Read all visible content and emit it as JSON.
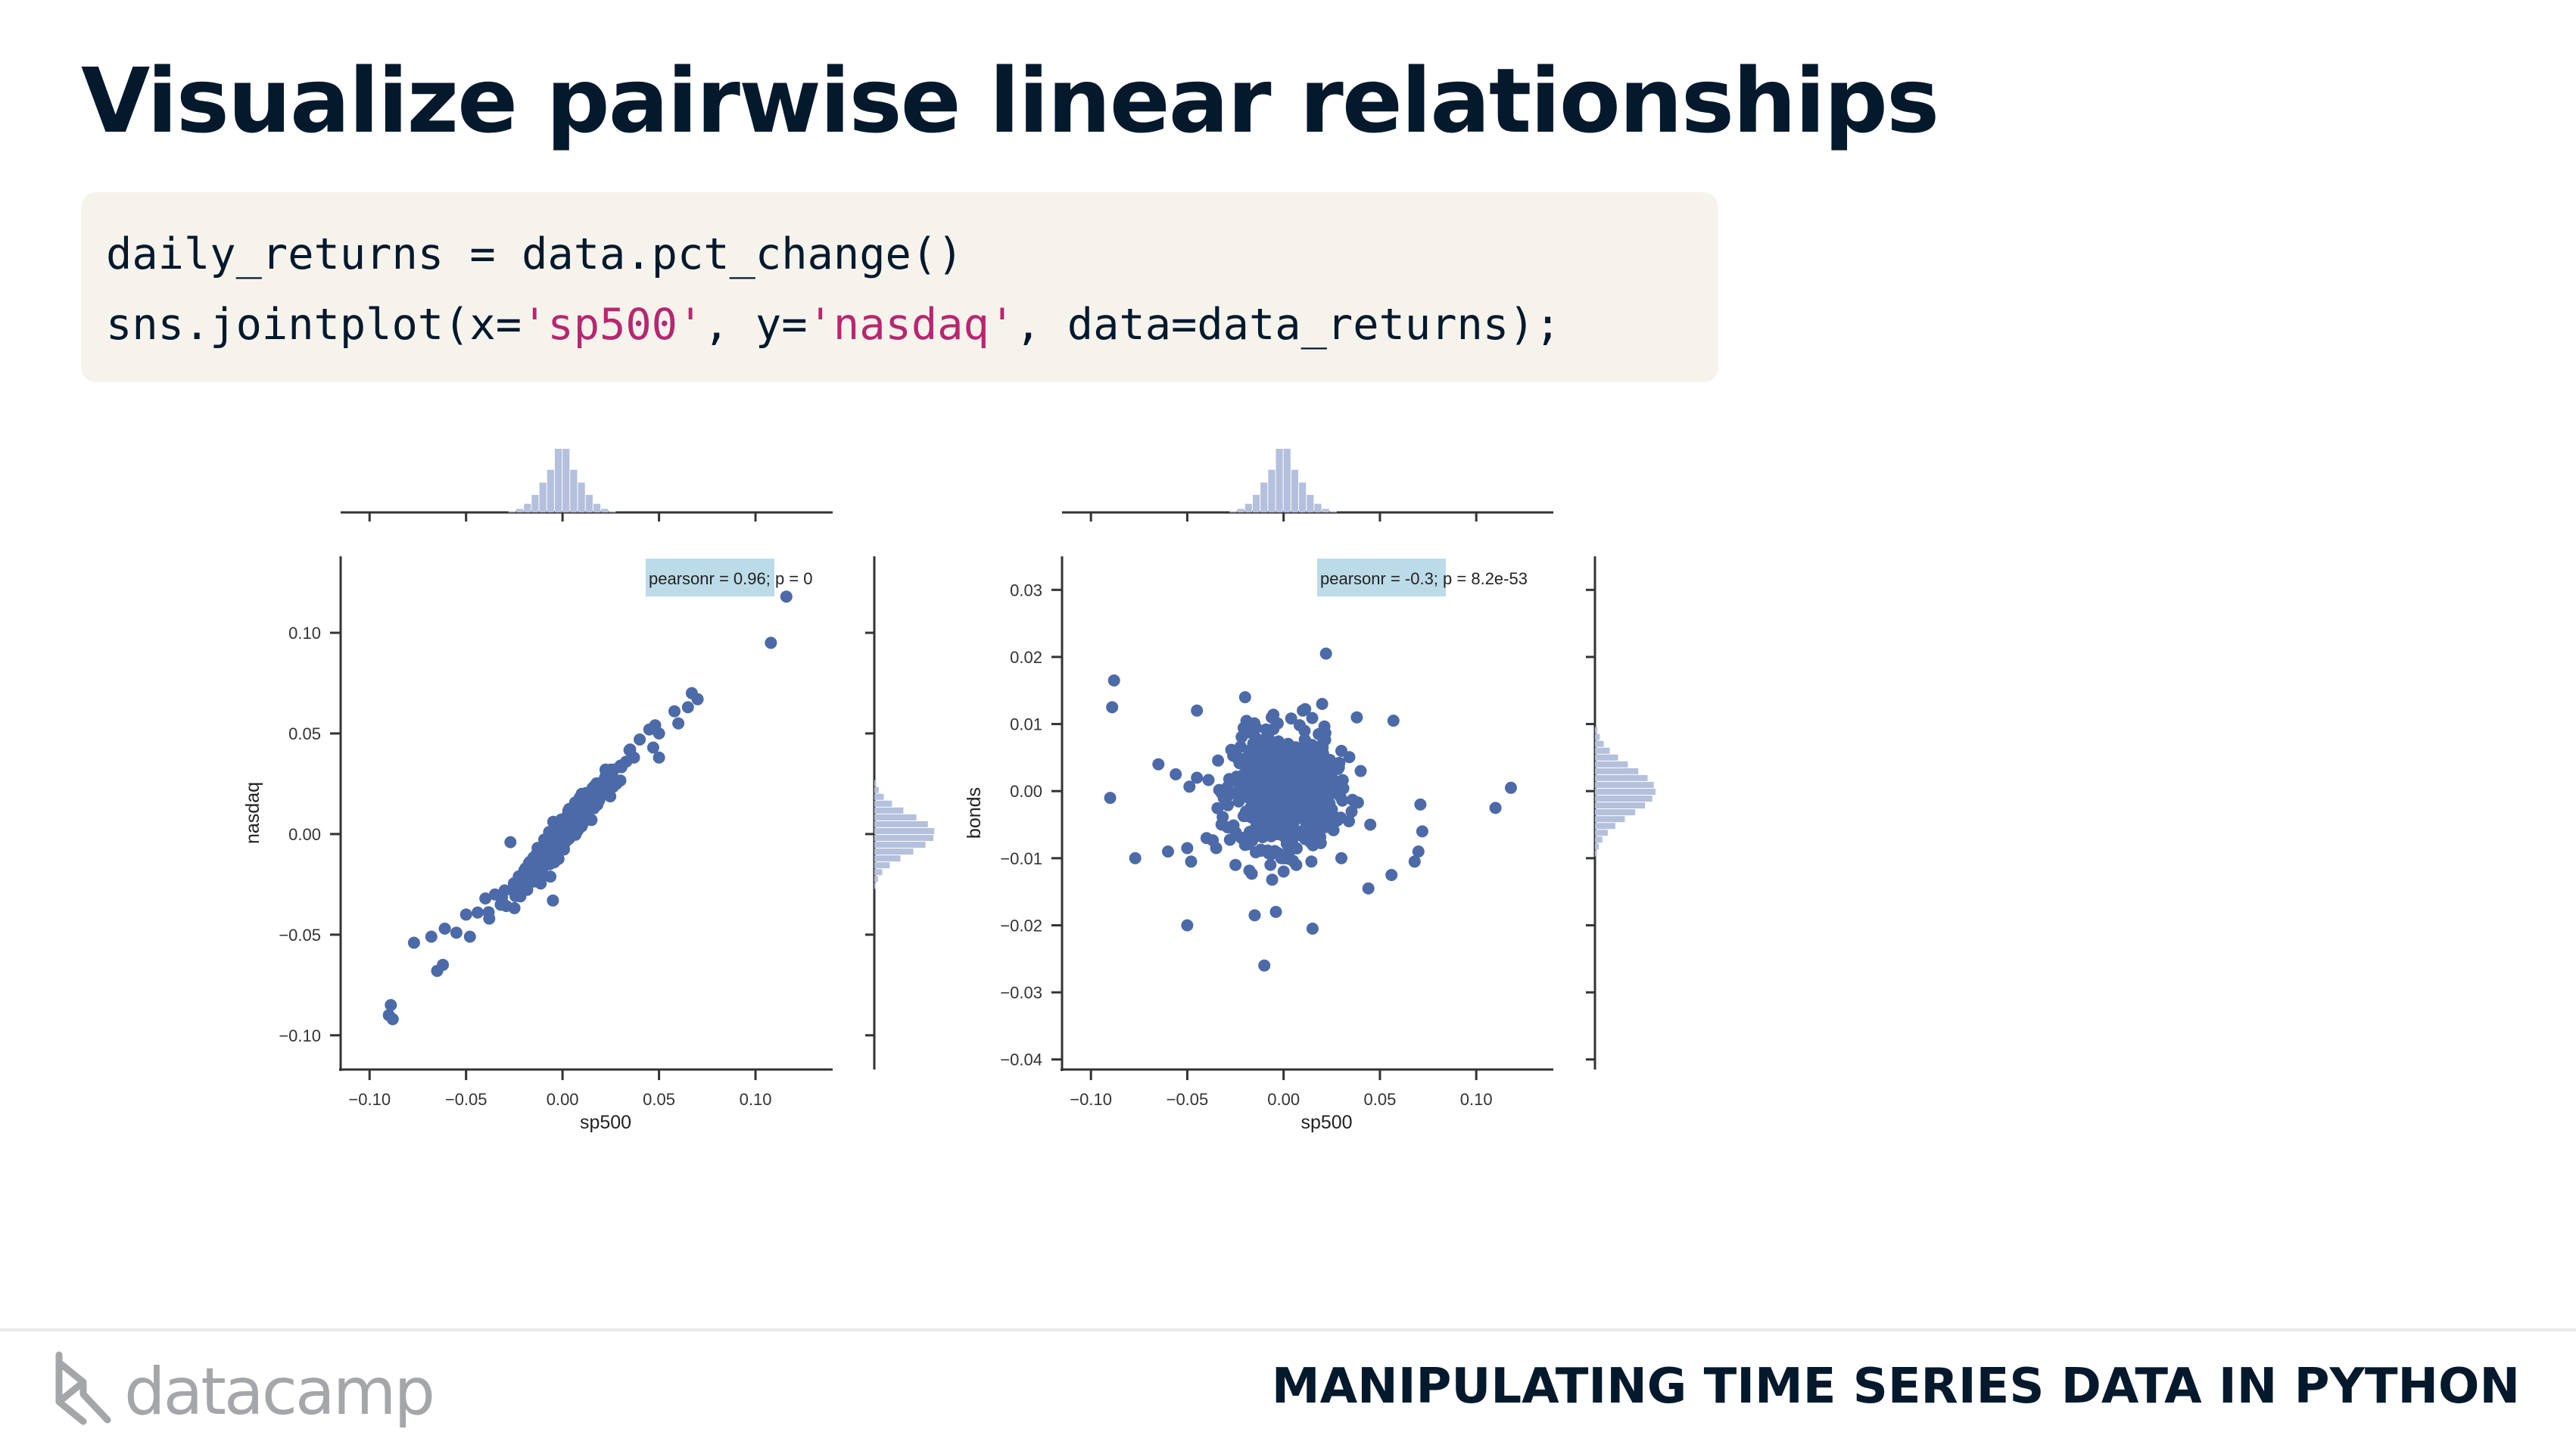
{
  "slide": {
    "title": "Visualize pairwise linear relationships",
    "footer_course": "MANIPULATING TIME SERIES DATA IN PYTHON",
    "logo_text": "datacamp"
  },
  "code": {
    "line1": "daily_returns = data.pct_change()",
    "line2_pre": "sns.jointplot(x=",
    "line2_x": "'sp500'",
    "line2_mid": ", y=",
    "line2_y": "'nasdaq'",
    "line2_post": ", data=data_returns);"
  },
  "colors": {
    "point": "#4c6aa8",
    "hist": "#b4c0dc",
    "annot_box": "#bcdbe8",
    "text": "#05192d",
    "string": "#b8266f"
  },
  "chart_data": [
    {
      "type": "scatter",
      "title": "",
      "xlabel": "sp500",
      "ylabel": "nasdaq",
      "xlim": [
        -0.115,
        0.14
      ],
      "ylim": [
        -0.117,
        0.138
      ],
      "xticks": [
        -0.1,
        -0.05,
        0.0,
        0.05,
        0.1
      ],
      "xtick_labels": [
        "−0.10",
        "−0.05",
        "0.00",
        "0.05",
        "0.10"
      ],
      "yticks": [
        -0.1,
        -0.05,
        0.0,
        0.05,
        0.1
      ],
      "ytick_labels": [
        "−0.10",
        "−0.05",
        "0.00",
        "0.05",
        "0.10"
      ],
      "annotation_highlight": "pearsonr = 0.96",
      "annotation_rest": "; p = 0",
      "marginal_histograms": true,
      "points": [
        [
          0.116,
          0.118
        ],
        [
          0.108,
          0.095
        ],
        [
          0.07,
          0.067
        ],
        [
          0.065,
          0.063
        ],
        [
          0.06,
          0.055
        ],
        [
          0.067,
          0.07
        ],
        [
          0.058,
          0.061
        ],
        [
          0.05,
          0.05
        ],
        [
          0.045,
          0.052
        ],
        [
          0.04,
          0.047
        ],
        [
          0.03,
          0.034
        ],
        [
          0.048,
          0.054
        ],
        [
          0.035,
          0.042
        ],
        [
          0.025,
          0.032
        ],
        [
          0.033,
          0.036
        ],
        [
          0.022,
          0.028
        ],
        [
          0.05,
          0.038
        ],
        [
          0.047,
          0.043
        ],
        [
          -0.09,
          -0.09
        ],
        [
          -0.089,
          -0.085
        ],
        [
          -0.088,
          -0.092
        ],
        [
          -0.077,
          -0.054
        ],
        [
          -0.068,
          -0.051
        ],
        [
          -0.065,
          -0.068
        ],
        [
          -0.062,
          -0.065
        ],
        [
          -0.061,
          -0.047
        ],
        [
          -0.055,
          -0.049
        ],
        [
          -0.05,
          -0.04
        ],
        [
          -0.048,
          -0.051
        ],
        [
          -0.044,
          -0.039
        ],
        [
          -0.04,
          -0.032
        ],
        [
          -0.035,
          -0.03
        ],
        [
          -0.03,
          -0.028
        ],
        [
          -0.027,
          -0.004
        ],
        [
          -0.015,
          -0.019
        ],
        [
          -0.005,
          -0.033
        ],
        [
          0.01,
          0.02
        ],
        [
          0.015,
          0.007
        ],
        [
          0.028,
          0.025
        ],
        [
          -0.02,
          -0.023
        ],
        [
          -0.012,
          -0.015
        ],
        [
          0.005,
          0.009
        ],
        [
          0.012,
          0.014
        ],
        [
          0.037,
          0.038
        ],
        [
          -0.038,
          -0.042
        ],
        [
          -0.022,
          -0.03
        ],
        [
          0.018,
          0.022
        ]
      ],
      "cluster_spread": 0.012
    },
    {
      "type": "scatter",
      "title": "",
      "xlabel": "sp500",
      "ylabel": "bonds",
      "xlim": [
        -0.115,
        0.14
      ],
      "ylim": [
        -0.0415,
        0.035
      ],
      "xticks": [
        -0.1,
        -0.05,
        0.0,
        0.05,
        0.1
      ],
      "xtick_labels": [
        "−0.10",
        "−0.05",
        "0.00",
        "0.05",
        "0.10"
      ],
      "yticks": [
        -0.04,
        -0.03,
        -0.02,
        -0.01,
        0.0,
        0.01,
        0.02,
        0.03
      ],
      "ytick_labels": [
        "−0.04",
        "−0.03",
        "−0.02",
        "−0.01",
        "0.00",
        "0.01",
        "0.02",
        "0.03"
      ],
      "annotation_highlight": "pearsonr = -0.3",
      "annotation_rest": "; p = 8.2e-53",
      "marginal_histograms": true,
      "points": [
        [
          -0.088,
          0.0165
        ],
        [
          -0.089,
          0.0125
        ],
        [
          -0.09,
          -0.001
        ],
        [
          -0.077,
          -0.01
        ],
        [
          -0.06,
          -0.009
        ],
        [
          -0.065,
          0.004
        ],
        [
          -0.05,
          -0.0085
        ],
        [
          -0.048,
          -0.0105
        ],
        [
          -0.035,
          -0.0085
        ],
        [
          -0.045,
          0.012
        ],
        [
          -0.05,
          -0.02
        ],
        [
          -0.015,
          -0.0185
        ],
        [
          -0.004,
          -0.018
        ],
        [
          -0.01,
          -0.026
        ],
        [
          0.015,
          -0.0205
        ],
        [
          0.022,
          0.0205
        ],
        [
          0.057,
          0.0105
        ],
        [
          0.038,
          0.011
        ],
        [
          0.068,
          -0.0105
        ],
        [
          0.072,
          -0.006
        ],
        [
          0.07,
          -0.009
        ],
        [
          0.056,
          -0.0125
        ],
        [
          0.044,
          -0.0145
        ],
        [
          0.11,
          -0.0025
        ],
        [
          0.118,
          0.0005
        ],
        [
          0.071,
          -0.002
        ],
        [
          -0.02,
          0.014
        ],
        [
          0.02,
          0.013
        ],
        [
          0.03,
          -0.01
        ],
        [
          -0.04,
          -0.007
        ],
        [
          -0.056,
          0.0025
        ],
        [
          0.04,
          0.003
        ],
        [
          0.045,
          -0.005
        ],
        [
          -0.045,
          0.002
        ],
        [
          0.01,
          0.012
        ],
        [
          0.0,
          -0.012
        ],
        [
          -0.025,
          -0.011
        ],
        [
          0.03,
          0.006
        ]
      ],
      "cluster_spread": 0.014
    }
  ]
}
